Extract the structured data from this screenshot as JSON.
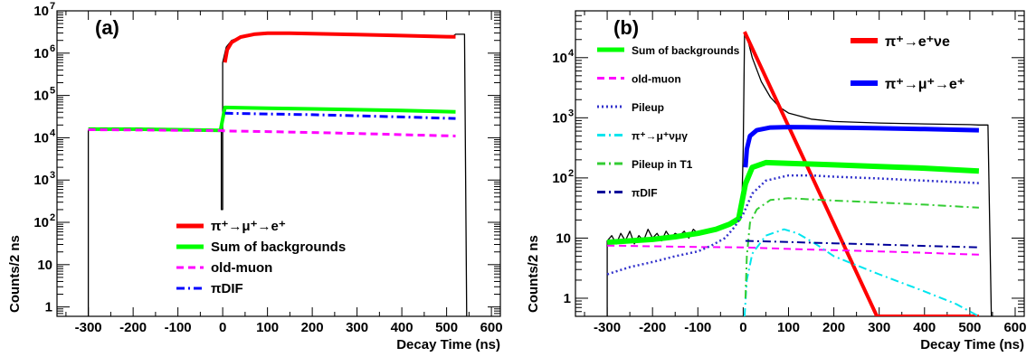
{
  "chart_data": [
    {
      "panel": "(a)",
      "type": "line",
      "xlabel": "Decay Time (ns)",
      "ylabel": "Counts/2 ns",
      "xlim": [
        -370,
        620
      ],
      "ylim": [
        0.6,
        10000000
      ],
      "log_y": true,
      "x_ticks": [
        -300,
        -200,
        -100,
        0,
        100,
        200,
        300,
        400,
        500,
        600
      ],
      "x_tick_labels": [
        "-300",
        "-200",
        "-100",
        "0",
        "100",
        "200",
        "300",
        "400",
        "500",
        "600"
      ],
      "y_ticks": [
        1,
        10,
        100,
        1000,
        10000,
        100000,
        1000000,
        10000000
      ],
      "y_tick_labels": [
        {
          "base": "1",
          "exp": ""
        },
        {
          "base": "10",
          "exp": ""
        },
        {
          "base": "10",
          "exp": "2"
        },
        {
          "base": "10",
          "exp": "3"
        },
        {
          "base": "10",
          "exp": "4"
        },
        {
          "base": "10",
          "exp": "5"
        },
        {
          "base": "10",
          "exp": "6"
        },
        {
          "base": "10",
          "exp": "7"
        }
      ],
      "legend_position": "bottom-center",
      "legend": [
        {
          "label": "π⁺→μ⁺→e⁺",
          "color": "#ff0000",
          "dash": "solid"
        },
        {
          "label": "Sum of backgrounds",
          "color": "#00ff00",
          "dash": "solid"
        },
        {
          "label": "old-muon",
          "color": "#ff00ff",
          "dash": "dashed"
        },
        {
          "label": "πDIF",
          "color": "#0000ff",
          "dash": "dashdot"
        }
      ],
      "series": [
        {
          "name": "data",
          "color": "#000000",
          "width": 1.3,
          "dash": "solid",
          "points": [
            [
              -300,
              0.3
            ],
            [
              -300,
              15000
            ],
            [
              -250,
              15800
            ],
            [
              -200,
              15900
            ],
            [
              -150,
              15600
            ],
            [
              -100,
              15200
            ],
            [
              -50,
              14900
            ],
            [
              -10,
              14500
            ],
            [
              -3,
              14500
            ],
            [
              -3,
              200
            ],
            [
              0,
              200
            ],
            [
              0,
              600000
            ],
            [
              8,
              1400000
            ],
            [
              20,
              2000000
            ],
            [
              50,
              2700000
            ],
            [
              100,
              3000000
            ],
            [
              200,
              2900000
            ],
            [
              300,
              2750000
            ],
            [
              400,
              2600000
            ],
            [
              500,
              2450000
            ],
            [
              512,
              2400000
            ],
            [
              520,
              2800000
            ],
            [
              540,
              2800000
            ],
            [
              545,
              0.3
            ]
          ]
        },
        {
          "name": "π⁺→μ⁺→e⁺",
          "color": "#ff0000",
          "width": 4,
          "dash": "solid",
          "points": [
            [
              5,
              600000
            ],
            [
              10,
              1200000
            ],
            [
              20,
              1800000
            ],
            [
              40,
              2400000
            ],
            [
              70,
              2800000
            ],
            [
              100,
              2950000
            ],
            [
              150,
              2950000
            ],
            [
              200,
              2880000
            ],
            [
              300,
              2750000
            ],
            [
              400,
              2600000
            ],
            [
              500,
              2450000
            ],
            [
              520,
              2420000
            ]
          ]
        },
        {
          "name": "Sum of backgrounds",
          "color": "#00ff00",
          "width": 4,
          "dash": "solid",
          "points": [
            [
              -300,
              16000
            ],
            [
              -200,
              16000
            ],
            [
              -100,
              15500
            ],
            [
              -5,
              15000
            ],
            [
              5,
              52000
            ],
            [
              100,
              50000
            ],
            [
              200,
              48000
            ],
            [
              300,
              46000
            ],
            [
              400,
              44000
            ],
            [
              520,
              41000
            ]
          ]
        },
        {
          "name": "old-muon",
          "color": "#ff00ff",
          "width": 3,
          "dash": "dashed",
          "points": [
            [
              -300,
              15500
            ],
            [
              -200,
              15300
            ],
            [
              -100,
              15000
            ],
            [
              -5,
              14800
            ],
            [
              5,
              14500
            ],
            [
              100,
              14000
            ],
            [
              200,
              13300
            ],
            [
              300,
              12600
            ],
            [
              400,
              11800
            ],
            [
              520,
              11000
            ]
          ]
        },
        {
          "name": "πDIF",
          "color": "#0000ff",
          "width": 3,
          "dash": "dashdot",
          "points": [
            [
              5,
              38000
            ],
            [
              100,
              36500
            ],
            [
              200,
              35000
            ],
            [
              300,
              33000
            ],
            [
              400,
              31000
            ],
            [
              520,
              28500
            ]
          ]
        }
      ]
    },
    {
      "panel": "(b)",
      "type": "line",
      "xlabel": "Decay Time (ns)",
      "ylabel": "Counts/2 ns",
      "xlim": [
        -370,
        620
      ],
      "ylim": [
        0.5,
        60000
      ],
      "log_y": true,
      "x_ticks": [
        -300,
        -200,
        -100,
        0,
        100,
        200,
        300,
        400,
        500,
        600
      ],
      "x_tick_labels": [
        "-300",
        "-200",
        "-100",
        "0",
        "100",
        "200",
        "300",
        "400",
        "500",
        "600"
      ],
      "y_ticks": [
        1,
        10,
        100,
        1000,
        10000
      ],
      "y_tick_labels": [
        {
          "base": "1",
          "exp": ""
        },
        {
          "base": "10",
          "exp": ""
        },
        {
          "base": "10",
          "exp": "2"
        },
        {
          "base": "10",
          "exp": "3"
        },
        {
          "base": "10",
          "exp": "4"
        }
      ],
      "legend_position": "top-left",
      "legend": [
        {
          "label": "Sum of backgrounds",
          "color": "#00ff00",
          "dash": "solid"
        },
        {
          "label": "old-muon",
          "color": "#ff00ff",
          "dash": "dashed"
        },
        {
          "label": "Pileup",
          "color": "#3333cc",
          "dash": "dotted"
        },
        {
          "label": "π⁺→μ⁺νμγ",
          "color": "#00e5ee",
          "dash": "dashdot"
        },
        {
          "label": "Pileup in T1",
          "color": "#33cc33",
          "dash": "dashdot"
        },
        {
          "label": "πDIF",
          "color": "#000099",
          "dash": "dashdot"
        }
      ],
      "legend_right": [
        {
          "label": "π⁺→e⁺νe",
          "color": "#ff0000"
        },
        {
          "label": "π⁺→μ⁺→e⁺",
          "color": "#0000ff"
        }
      ],
      "series": [
        {
          "name": "data",
          "color": "#000000",
          "width": 1.3,
          "dash": "solid",
          "points": [
            [
              -300,
              0.3
            ],
            [
              -300,
              9
            ],
            [
              -290,
              11
            ],
            [
              -280,
              8
            ],
            [
              -270,
              12
            ],
            [
              -260,
              9
            ],
            [
              -250,
              13
            ],
            [
              -240,
              8
            ],
            [
              -230,
              11
            ],
            [
              -220,
              9
            ],
            [
              -210,
              14
            ],
            [
              -200,
              10
            ],
            [
              -190,
              12
            ],
            [
              -180,
              9
            ],
            [
              -170,
              13
            ],
            [
              -160,
              10
            ],
            [
              -150,
              12
            ],
            [
              -140,
              11
            ],
            [
              -130,
              13
            ],
            [
              -120,
              10
            ],
            [
              -110,
              14
            ],
            [
              -100,
              12
            ],
            [
              -90,
              13
            ],
            [
              -80,
              12
            ],
            [
              -70,
              14
            ],
            [
              -60,
              13
            ],
            [
              -50,
              15
            ],
            [
              -40,
              16
            ],
            [
              -30,
              18
            ],
            [
              -20,
              20
            ],
            [
              -10,
              22
            ],
            [
              -3,
              35
            ],
            [
              0,
              300
            ],
            [
              3,
              26000
            ],
            [
              10,
              20000
            ],
            [
              20,
              10000
            ],
            [
              40,
              4000
            ],
            [
              60,
              2200
            ],
            [
              80,
              1500
            ],
            [
              100,
              1200
            ],
            [
              150,
              950
            ],
            [
              200,
              870
            ],
            [
              300,
              820
            ],
            [
              400,
              790
            ],
            [
              500,
              770
            ],
            [
              520,
              760
            ],
            [
              530,
              760
            ],
            [
              540,
              760
            ],
            [
              548,
              0.3
            ]
          ]
        },
        {
          "name": "π⁺→e⁺νe",
          "color": "#ff0000",
          "width": 4,
          "dash": "solid",
          "points": [
            [
              3,
              27000
            ],
            [
              295,
              0.5
            ],
            [
              520,
              0.5
            ]
          ]
        },
        {
          "name": "π⁺→μ⁺→e⁺",
          "color": "#0000ff",
          "width": 5,
          "dash": "solid",
          "points": [
            [
              5,
              150
            ],
            [
              8,
              300
            ],
            [
              15,
              500
            ],
            [
              30,
              620
            ],
            [
              60,
              690
            ],
            [
              100,
              700
            ],
            [
              200,
              690
            ],
            [
              300,
              670
            ],
            [
              400,
              650
            ],
            [
              520,
              620
            ]
          ]
        },
        {
          "name": "Sum of backgrounds",
          "color": "#00ff00",
          "width": 6,
          "dash": "solid",
          "points": [
            [
              -300,
              8.5
            ],
            [
              -250,
              9
            ],
            [
              -200,
              9.5
            ],
            [
              -150,
              10.5
            ],
            [
              -100,
              12
            ],
            [
              -60,
              14
            ],
            [
              -30,
              17
            ],
            [
              -10,
              21
            ],
            [
              5,
              80
            ],
            [
              20,
              150
            ],
            [
              50,
              180
            ],
            [
              100,
              175
            ],
            [
              200,
              165
            ],
            [
              300,
              155
            ],
            [
              400,
              145
            ],
            [
              520,
              130
            ]
          ]
        },
        {
          "name": "old-muon",
          "color": "#ff00ff",
          "width": 2,
          "dash": "dashed",
          "points": [
            [
              -300,
              7.5
            ],
            [
              -200,
              7.3
            ],
            [
              -100,
              7.1
            ],
            [
              0,
              7
            ],
            [
              100,
              6.6
            ],
            [
              200,
              6.3
            ],
            [
              300,
              6
            ],
            [
              400,
              5.7
            ],
            [
              520,
              5.3
            ]
          ]
        },
        {
          "name": "Pileup",
          "color": "#3333cc",
          "width": 2.5,
          "dash": "dotted",
          "points": [
            [
              -300,
              2.5
            ],
            [
              -250,
              3.3
            ],
            [
              -200,
              4
            ],
            [
              -150,
              5
            ],
            [
              -100,
              6
            ],
            [
              -70,
              7.5
            ],
            [
              -40,
              10
            ],
            [
              -20,
              15
            ],
            [
              0,
              25
            ],
            [
              20,
              55
            ],
            [
              50,
              90
            ],
            [
              100,
              110
            ],
            [
              150,
              110
            ],
            [
              200,
              105
            ],
            [
              300,
              98
            ],
            [
              400,
              90
            ],
            [
              520,
              82
            ]
          ]
        },
        {
          "name": "π⁺→μ⁺νμγ",
          "color": "#00e5ee",
          "width": 2,
          "dash": "dashdot",
          "points": [
            [
              3,
              0.5
            ],
            [
              8,
              2
            ],
            [
              20,
              5.5
            ],
            [
              50,
              11
            ],
            [
              90,
              14
            ],
            [
              120,
              12
            ],
            [
              160,
              8
            ],
            [
              200,
              5
            ],
            [
              300,
              2.5
            ],
            [
              400,
              1.3
            ],
            [
              470,
              0.8
            ],
            [
              520,
              0.5
            ]
          ]
        },
        {
          "name": "Pileup in T1",
          "color": "#33cc33",
          "width": 2,
          "dash": "dashdot",
          "points": [
            [
              5,
              1
            ],
            [
              8,
              5
            ],
            [
              15,
              18
            ],
            [
              30,
              30
            ],
            [
              60,
              43
            ],
            [
              100,
              46
            ],
            [
              150,
              44
            ],
            [
              200,
              42
            ],
            [
              300,
              39
            ],
            [
              400,
              36
            ],
            [
              520,
              32
            ]
          ]
        },
        {
          "name": "πDIF",
          "color": "#000099",
          "width": 2,
          "dash": "dashdot",
          "points": [
            [
              5,
              9
            ],
            [
              100,
              8.6
            ],
            [
              200,
              8.2
            ],
            [
              300,
              7.8
            ],
            [
              400,
              7.4
            ],
            [
              520,
              7
            ]
          ]
        }
      ]
    }
  ]
}
